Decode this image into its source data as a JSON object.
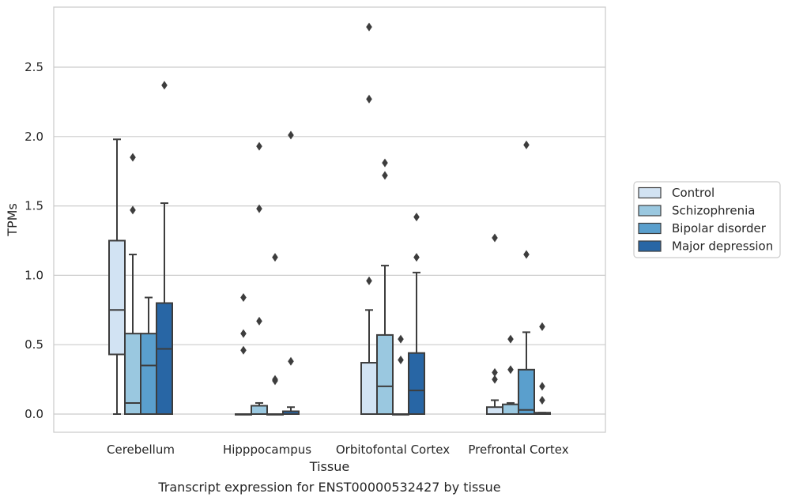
{
  "chart_data": {
    "type": "box",
    "title": "",
    "caption": "Transcript expression for ENST00000532427 by tissue",
    "xlabel": "Tissue",
    "ylabel": "TPMs",
    "ylim": [
      -0.14,
      2.94
    ],
    "yticks": [
      0.0,
      0.5,
      1.0,
      1.5,
      2.0,
      2.5
    ],
    "ytick_labels": [
      "0.0",
      "0.5",
      "1.0",
      "1.5",
      "2.0",
      "2.5"
    ],
    "categories": [
      "Cerebellum",
      "Hipppocampus",
      "Orbitofontal Cortex",
      "Prefrontal Cortex"
    ],
    "grid": "horizontal",
    "legend_position": "right",
    "series": [
      {
        "name": "Control",
        "color": "#d2e3f3",
        "boxes": [
          {
            "whisker_low": 0.0,
            "q1": 0.43,
            "median": 0.75,
            "q3": 1.25,
            "whisker_high": 1.98,
            "outliers": []
          },
          {
            "whisker_low": 0.0,
            "q1": 0.0,
            "median": 0.0,
            "q3": 0.0,
            "whisker_high": 0.0,
            "outliers": [
              0.46,
              0.58,
              0.84
            ]
          },
          {
            "whisker_low": 0.0,
            "q1": 0.0,
            "median": 0.0,
            "q3": 0.37,
            "whisker_high": 0.75,
            "outliers": [
              0.96,
              2.27,
              2.79
            ]
          },
          {
            "whisker_low": 0.0,
            "q1": 0.0,
            "median": 0.0,
            "q3": 0.05,
            "whisker_high": 0.1,
            "outliers": [
              0.25,
              0.3,
              1.27
            ]
          }
        ]
      },
      {
        "name": "Schizophrenia",
        "color": "#9ac8e0",
        "boxes": [
          {
            "whisker_low": 0.0,
            "q1": 0.0,
            "median": 0.08,
            "q3": 0.58,
            "whisker_high": 1.15,
            "outliers": [
              1.47,
              1.85
            ]
          },
          {
            "whisker_low": 0.0,
            "q1": 0.0,
            "median": 0.0,
            "q3": 0.06,
            "whisker_high": 0.08,
            "outliers": [
              0.67,
              1.48,
              1.93
            ]
          },
          {
            "whisker_low": 0.0,
            "q1": 0.0,
            "median": 0.2,
            "q3": 0.57,
            "whisker_high": 1.07,
            "outliers": [
              1.72,
              1.81
            ]
          },
          {
            "whisker_low": 0.0,
            "q1": 0.0,
            "median": 0.0,
            "q3": 0.07,
            "whisker_high": 0.08,
            "outliers": [
              0.32,
              0.54
            ]
          }
        ]
      },
      {
        "name": "Bipolar disorder",
        "color": "#5a9fcd",
        "boxes": [
          {
            "whisker_low": 0.0,
            "q1": 0.0,
            "median": 0.35,
            "q3": 0.58,
            "whisker_high": 0.84,
            "outliers": []
          },
          {
            "whisker_low": 0.0,
            "q1": 0.0,
            "median": 0.0,
            "q3": 0.0,
            "whisker_high": 0.0,
            "outliers": [
              0.24,
              0.25,
              1.13
            ]
          },
          {
            "whisker_low": 0.0,
            "q1": 0.0,
            "median": 0.0,
            "q3": 0.0,
            "whisker_high": 0.0,
            "outliers": [
              0.39,
              0.54
            ]
          },
          {
            "whisker_low": 0.0,
            "q1": 0.0,
            "median": 0.03,
            "q3": 0.32,
            "whisker_high": 0.59,
            "outliers": [
              1.15,
              1.94
            ]
          }
        ]
      },
      {
        "name": "Major depression",
        "color": "#2866a5",
        "boxes": [
          {
            "whisker_low": 0.0,
            "q1": 0.0,
            "median": 0.47,
            "q3": 0.8,
            "whisker_high": 1.52,
            "outliers": [
              2.37
            ]
          },
          {
            "whisker_low": 0.0,
            "q1": 0.0,
            "median": 0.0,
            "q3": 0.02,
            "whisker_high": 0.05,
            "outliers": [
              0.38,
              2.01
            ]
          },
          {
            "whisker_low": 0.0,
            "q1": 0.0,
            "median": 0.17,
            "q3": 0.44,
            "whisker_high": 1.02,
            "outliers": [
              1.13,
              1.42
            ]
          },
          {
            "whisker_low": 0.0,
            "q1": 0.0,
            "median": 0.0,
            "q3": 0.01,
            "whisker_high": 0.01,
            "outliers": [
              0.1,
              0.2,
              0.63
            ]
          }
        ]
      }
    ]
  }
}
